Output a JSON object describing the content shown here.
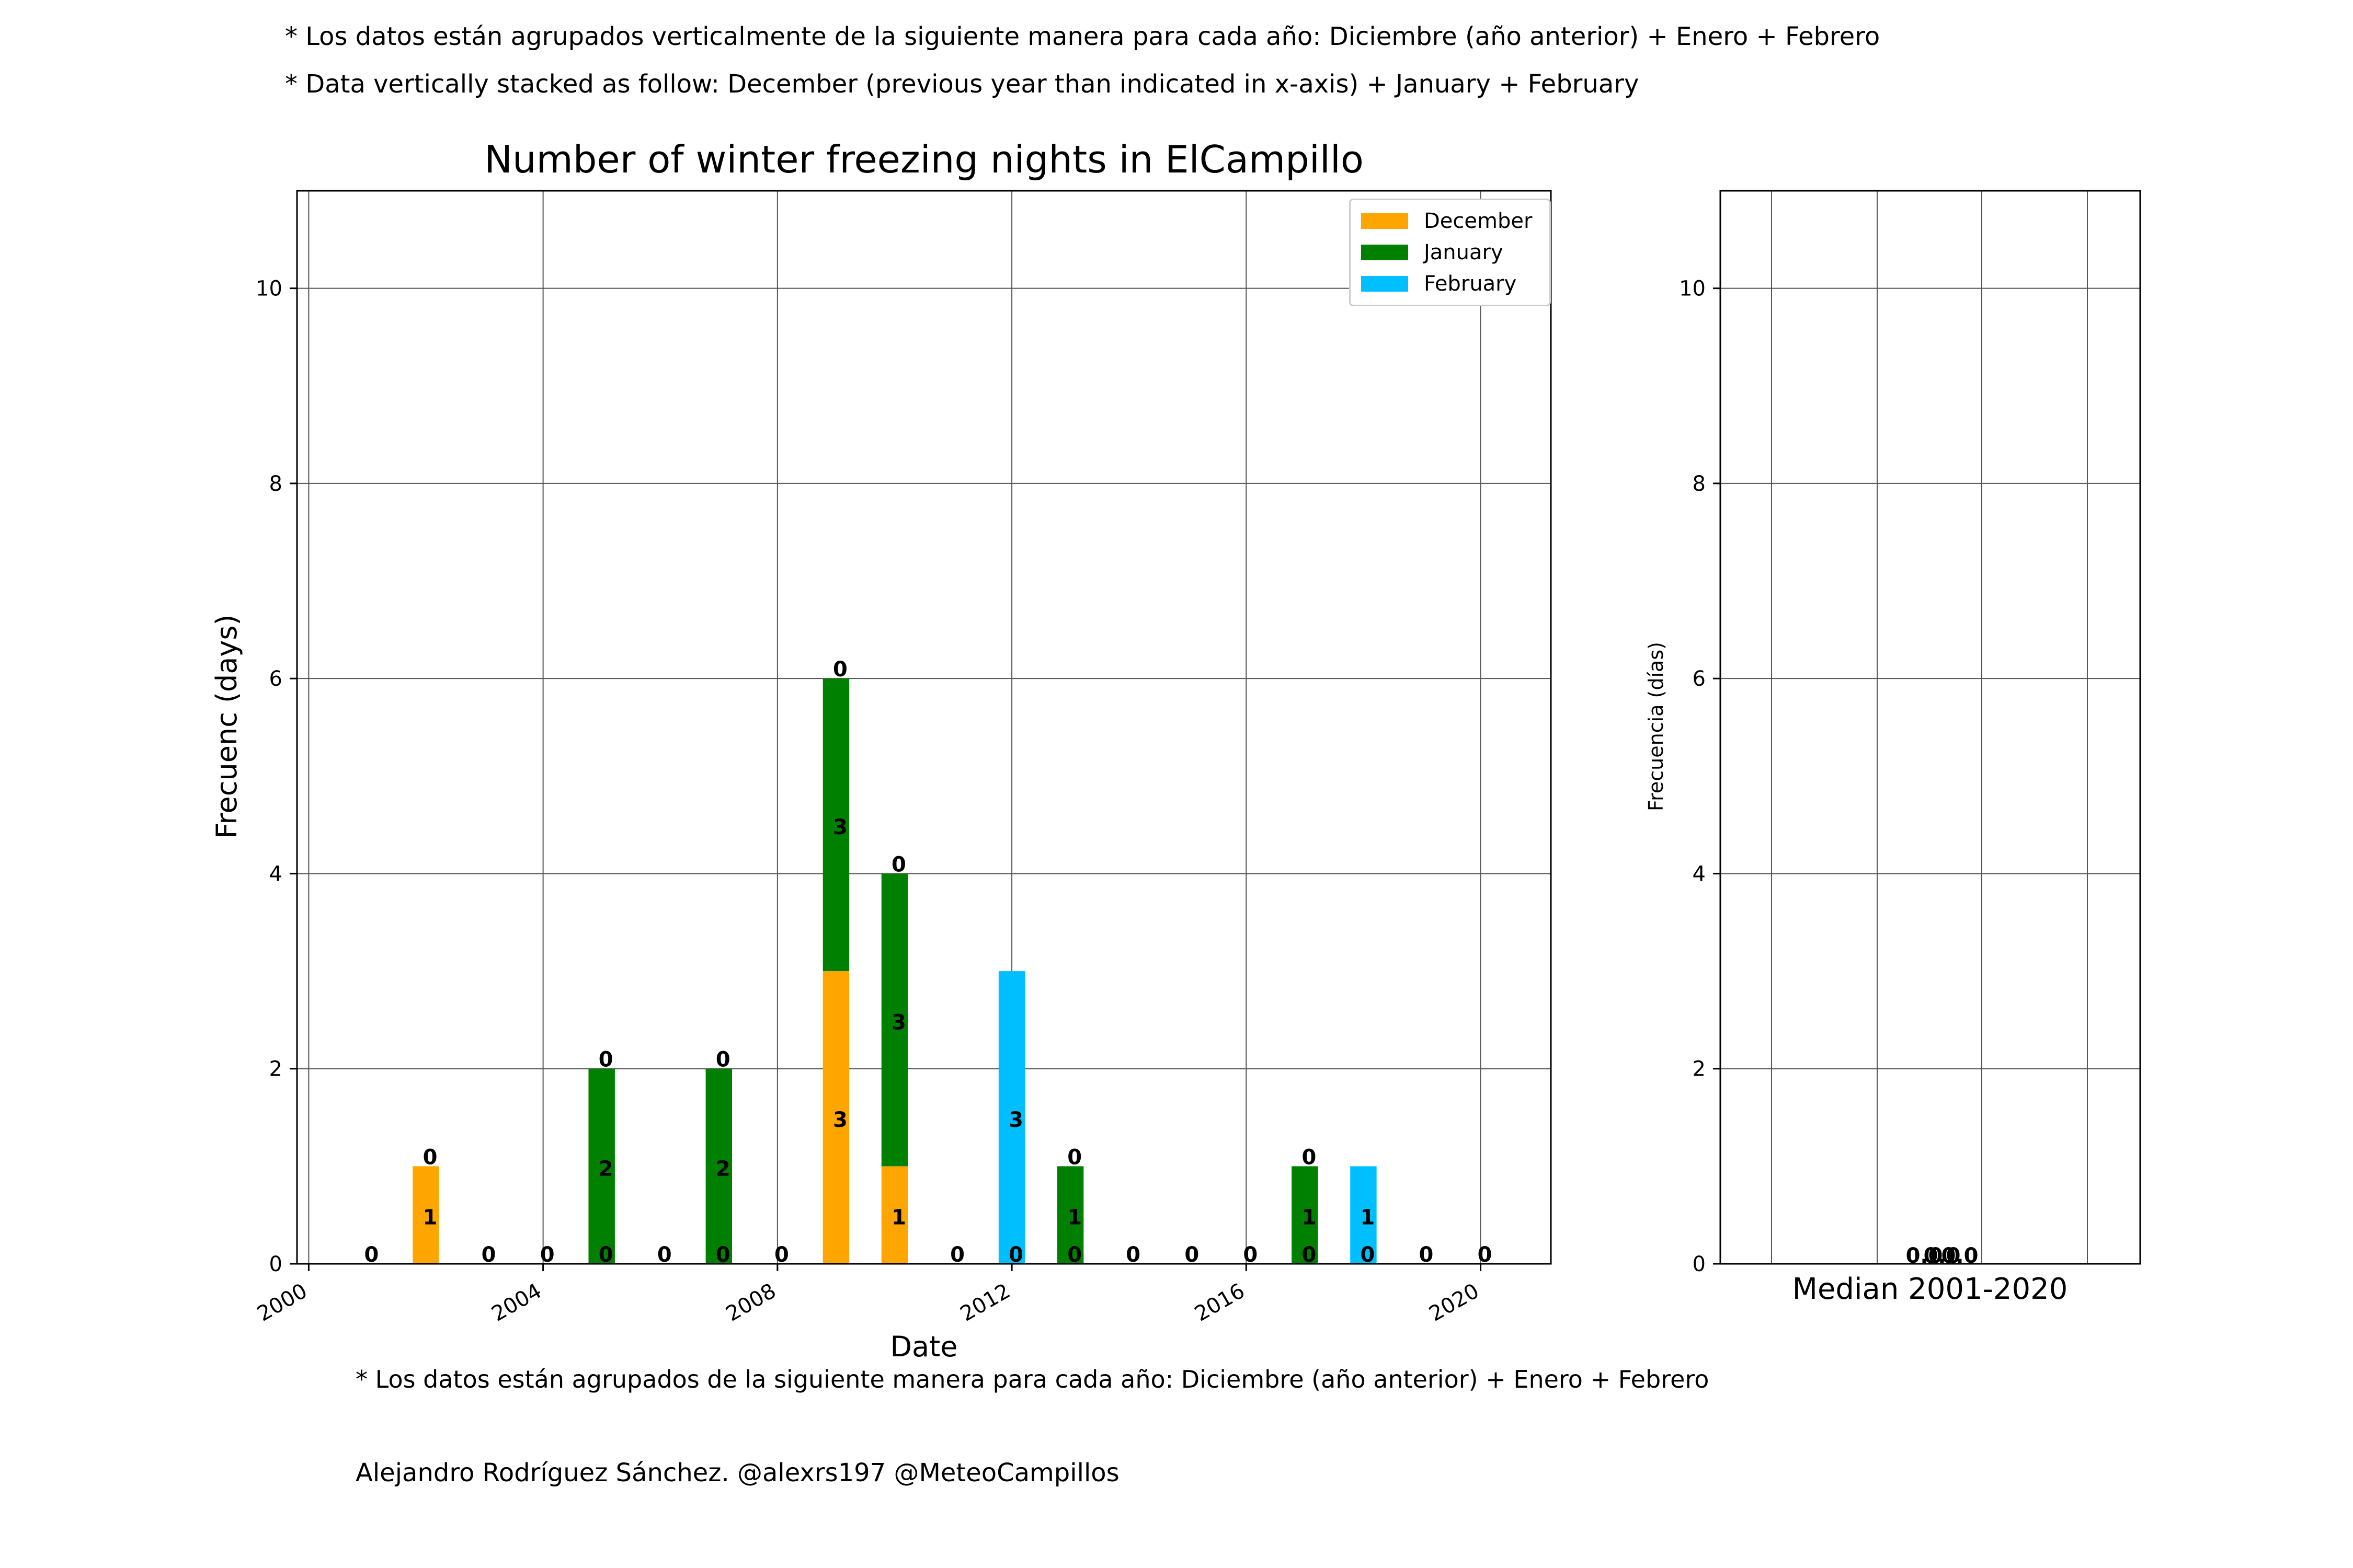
{
  "notes": {
    "top_es": "* Los datos están agrupados verticalmente de la siguiente manera para cada año: Diciembre (año anterior) + Enero  + Febrero",
    "top_en": "* Data vertically stacked as follow: December (previous year than indicated in x-axis) + January  + February",
    "bottom_es": "* Los datos están agrupados de la siguiente manera para cada año: Diciembre (año anterior) + Enero  + Febrero",
    "credit": "Alejandro Rodríguez Sánchez. @alexrs197 @MeteoCampillos"
  },
  "chart_data": [
    {
      "type": "bar",
      "stacked": true,
      "title": "Number of winter freezing nights in ElCampillo",
      "xlabel": "Date",
      "ylabel": "Frecuenc (days)",
      "ylim": [
        0,
        11
      ],
      "xlim": [
        1999.8,
        2021.2
      ],
      "grid": true,
      "legend_position": "upper-right",
      "x_ticks": [
        2000,
        2004,
        2008,
        2012,
        2016,
        2020
      ],
      "x_tick_labels": [
        "2000",
        "2004",
        "2008",
        "2012",
        "2016",
        "2020"
      ],
      "y_ticks": [
        0,
        2,
        4,
        6,
        8,
        10
      ],
      "y_tick_labels": [
        "0",
        "2",
        "4",
        "6",
        "8",
        "10"
      ],
      "categories": [
        2001,
        2002,
        2003,
        2004,
        2005,
        2006,
        2007,
        2008,
        2009,
        2010,
        2011,
        2012,
        2013,
        2014,
        2015,
        2016,
        2017,
        2018,
        2019,
        2020
      ],
      "series": [
        {
          "name": "December",
          "color": "#ffa500",
          "values": [
            0,
            1,
            0,
            0,
            0,
            0,
            0,
            0,
            3,
            1,
            0,
            0,
            0,
            0,
            0,
            0,
            0,
            0,
            0,
            0
          ]
        },
        {
          "name": "January",
          "color": "#008000",
          "values": [
            0,
            0,
            0,
            0,
            2,
            0,
            2,
            0,
            3,
            3,
            0,
            0,
            1,
            0,
            0,
            0,
            1,
            0,
            0,
            0
          ]
        },
        {
          "name": "February",
          "color": "#00bfff",
          "values": [
            0,
            0,
            0,
            0,
            0,
            0,
            0,
            0,
            0,
            0,
            0,
            3,
            0,
            0,
            0,
            0,
            0,
            1,
            0,
            0
          ]
        }
      ]
    },
    {
      "type": "bar",
      "stacked": true,
      "title": "",
      "xlabel": "Median 2001-2020",
      "ylabel": "Frecuencia (días)",
      "ylim": [
        0,
        11
      ],
      "grid": true,
      "y_ticks": [
        0,
        2,
        4,
        6,
        8,
        10
      ],
      "y_tick_labels": [
        "0",
        "2",
        "4",
        "6",
        "8",
        "10"
      ],
      "categories": [
        "Median 2001-2020"
      ],
      "series": [
        {
          "name": "December",
          "color": "#ffa500",
          "values": [
            0.0
          ]
        },
        {
          "name": "January",
          "color": "#008000",
          "values": [
            0.0
          ]
        },
        {
          "name": "February",
          "color": "#00bfff",
          "values": [
            0.0
          ]
        }
      ],
      "value_labels": [
        "0.0",
        "0.0",
        "0.0"
      ]
    }
  ]
}
